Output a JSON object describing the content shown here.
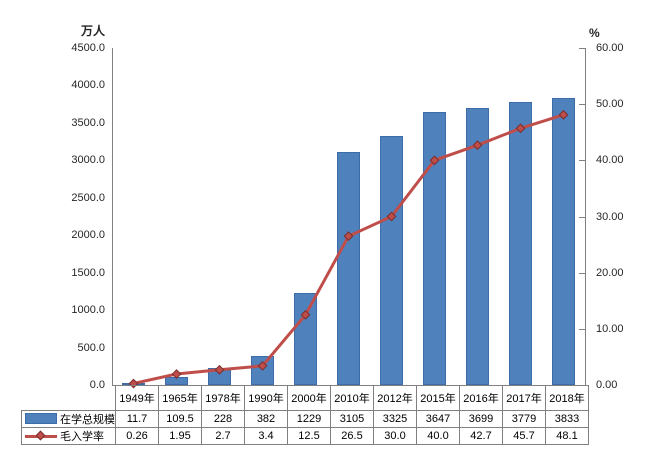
{
  "chart_data": {
    "type": "combo-bar-line",
    "title": "",
    "categories": [
      "1949年",
      "1965年",
      "1978年",
      "1990年",
      "2000年",
      "2010年",
      "2012年",
      "2015年",
      "2016年",
      "2017年",
      "2018年"
    ],
    "series": [
      {
        "name": "在学总规模",
        "type": "bar",
        "axis": "left",
        "color": "#4F81BD",
        "border_color": "#3D6DA8",
        "values": [
          11.7,
          109.5,
          228,
          382,
          1229,
          3105,
          3325,
          3647,
          3699,
          3779,
          3833
        ],
        "table_labels": [
          "11.7",
          "109.5",
          "228",
          "382",
          "1229",
          "3105",
          "3325",
          "3647",
          "3699",
          "3779",
          "3833"
        ]
      },
      {
        "name": "毛入学率",
        "type": "line",
        "axis": "right",
        "color": "#BF4E4B",
        "marker": "diamond",
        "marker_border_color": "#7A2E2C",
        "values": [
          0.26,
          1.95,
          2.7,
          3.4,
          12.5,
          26.5,
          30.0,
          40.0,
          42.7,
          45.7,
          48.1
        ],
        "table_labels": [
          "0.26",
          "1.95",
          "2.7",
          "3.4",
          "12.5",
          "26.5",
          "30.0",
          "40.0",
          "42.7",
          "45.7",
          "48.1"
        ]
      }
    ],
    "left_axis": {
      "title": "万人",
      "min": 0,
      "max": 4500,
      "step": 500,
      "tick_labels": [
        "0.0",
        "500.0",
        "1000.0",
        "1500.0",
        "2000.0",
        "2500.0",
        "3000.0",
        "3500.0",
        "4000.0",
        "4500.0"
      ]
    },
    "right_axis": {
      "title": "%",
      "min": 0,
      "max": 60,
      "step": 10,
      "tick_labels": [
        "0.00",
        "10.00",
        "20.00",
        "30.00",
        "40.00",
        "50.00",
        "60.00"
      ]
    },
    "grid": false,
    "legend_position": "data-table-left",
    "has_data_table": true
  }
}
